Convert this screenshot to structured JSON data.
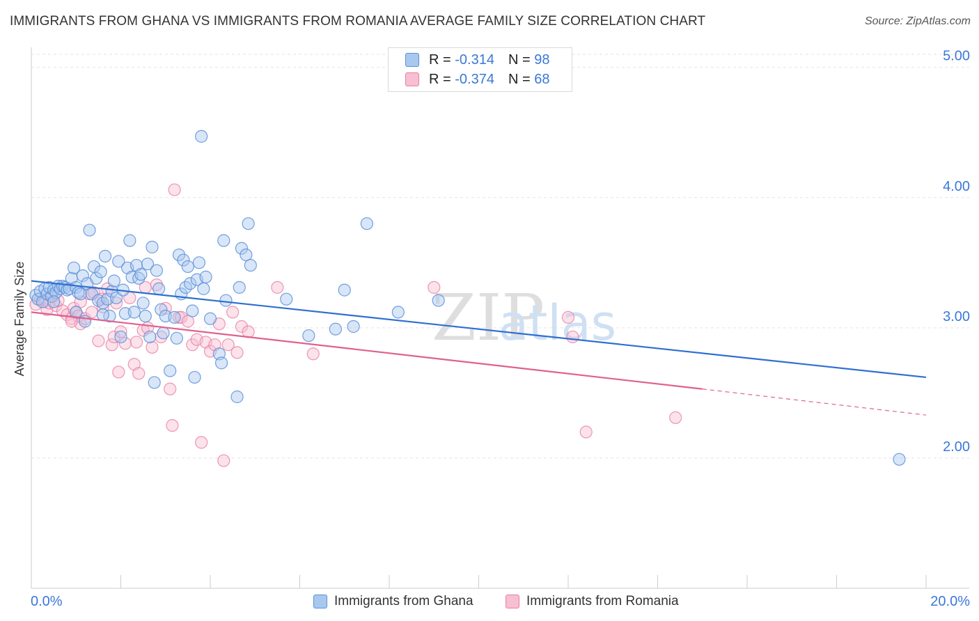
{
  "header": {
    "title": "IMMIGRANTS FROM GHANA VS IMMIGRANTS FROM ROMANIA AVERAGE FAMILY SIZE CORRELATION CHART",
    "source": "Source: ZipAtlas.com"
  },
  "watermark": {
    "zip": "ZIP",
    "atlas": "atlas"
  },
  "legend": {
    "series": [
      {
        "r_label": "R =",
        "r_value": "-0.314",
        "n_label": "N =",
        "n_value": "98"
      },
      {
        "r_label": "R =",
        "r_value": "-0.374",
        "n_label": "N =",
        "n_value": "68"
      }
    ]
  },
  "colors": {
    "ghana_fill": "#a8c8f0",
    "ghana_stroke": "#5b8fd8",
    "ghana_line": "#2f6fd0",
    "romania_fill": "#f7bfd2",
    "romania_stroke": "#e87ea3",
    "romania_line": "#e0608f",
    "tick_label": "#3a78d8",
    "grid": "#e3e3e3"
  },
  "chart_data": {
    "type": "scatter",
    "title": "IMMIGRANTS FROM GHANA VS IMMIGRANTS FROM ROMANIA AVERAGE FAMILY SIZE CORRELATION CHART",
    "xlabel": "",
    "ylabel": "Average Family Size",
    "xlim": [
      0,
      20
    ],
    "ylim": [
      1.0,
      5.1
    ],
    "x_tick_labels": {
      "min": "0.0%",
      "max": "20.0%"
    },
    "y_ticks": [
      {
        "value": 2.0,
        "label": "2.00"
      },
      {
        "value": 3.0,
        "label": "3.00"
      },
      {
        "value": 4.0,
        "label": "4.00"
      },
      {
        "value": 5.0,
        "label": "5.00"
      }
    ],
    "grid": true,
    "legend_position": "top-center",
    "series": [
      {
        "name": "Immigrants from Ghana",
        "r": -0.314,
        "n": 98,
        "trend": {
          "x0": 0,
          "y0": 3.36,
          "x1": 20,
          "y1": 2.62
        },
        "points": [
          [
            0.1,
            3.25
          ],
          [
            0.15,
            3.22
          ],
          [
            0.2,
            3.28
          ],
          [
            0.25,
            3.2
          ],
          [
            0.3,
            3.3
          ],
          [
            0.35,
            3.26
          ],
          [
            0.4,
            3.31
          ],
          [
            0.45,
            3.24
          ],
          [
            0.5,
            3.29
          ],
          [
            0.55,
            3.27
          ],
          [
            0.6,
            3.32
          ],
          [
            0.65,
            3.3
          ],
          [
            0.7,
            3.32
          ],
          [
            0.75,
            3.31
          ],
          [
            0.8,
            3.29
          ],
          [
            0.85,
            3.3
          ],
          [
            0.9,
            3.38
          ],
          [
            0.95,
            3.46
          ],
          [
            1.0,
            3.31
          ],
          [
            1.05,
            3.27
          ],
          [
            1.1,
            3.26
          ],
          [
            1.15,
            3.4
          ],
          [
            1.2,
            3.05
          ],
          [
            1.25,
            3.34
          ],
          [
            1.3,
            3.75
          ],
          [
            1.35,
            3.26
          ],
          [
            1.4,
            3.47
          ],
          [
            1.45,
            3.38
          ],
          [
            1.5,
            3.21
          ],
          [
            1.55,
            3.43
          ],
          [
            1.6,
            3.19
          ],
          [
            1.65,
            3.55
          ],
          [
            1.7,
            3.22
          ],
          [
            1.75,
            3.09
          ],
          [
            1.8,
            3.28
          ],
          [
            1.85,
            3.36
          ],
          [
            1.9,
            3.23
          ],
          [
            1.95,
            3.51
          ],
          [
            2.0,
            2.93
          ],
          [
            2.05,
            3.29
          ],
          [
            2.1,
            3.11
          ],
          [
            2.15,
            3.46
          ],
          [
            2.2,
            3.67
          ],
          [
            2.25,
            3.39
          ],
          [
            2.3,
            3.12
          ],
          [
            2.35,
            3.48
          ],
          [
            2.4,
            3.38
          ],
          [
            2.45,
            3.41
          ],
          [
            2.5,
            3.19
          ],
          [
            2.55,
            3.09
          ],
          [
            2.6,
            3.49
          ],
          [
            2.65,
            2.93
          ],
          [
            2.7,
            3.62
          ],
          [
            2.75,
            2.58
          ],
          [
            2.8,
            3.44
          ],
          [
            2.85,
            3.3
          ],
          [
            2.9,
            3.14
          ],
          [
            2.95,
            2.96
          ],
          [
            3.0,
            3.09
          ],
          [
            3.1,
            2.67
          ],
          [
            3.2,
            3.08
          ],
          [
            3.25,
            2.92
          ],
          [
            3.3,
            3.56
          ],
          [
            3.35,
            3.26
          ],
          [
            3.4,
            3.52
          ],
          [
            3.45,
            3.31
          ],
          [
            3.5,
            3.47
          ],
          [
            3.55,
            3.34
          ],
          [
            3.6,
            3.13
          ],
          [
            3.65,
            2.62
          ],
          [
            3.7,
            3.37
          ],
          [
            3.75,
            3.5
          ],
          [
            3.8,
            4.47
          ],
          [
            3.85,
            3.3
          ],
          [
            3.9,
            3.39
          ],
          [
            4.0,
            3.07
          ],
          [
            4.2,
            2.8
          ],
          [
            4.25,
            2.73
          ],
          [
            4.3,
            3.67
          ],
          [
            4.35,
            3.21
          ],
          [
            4.6,
            2.47
          ],
          [
            4.65,
            3.31
          ],
          [
            4.7,
            3.61
          ],
          [
            4.8,
            3.56
          ],
          [
            4.85,
            3.8
          ],
          [
            4.9,
            3.48
          ],
          [
            5.7,
            3.22
          ],
          [
            6.2,
            2.94
          ],
          [
            7.0,
            3.29
          ],
          [
            6.8,
            2.99
          ],
          [
            7.2,
            3.01
          ],
          [
            7.5,
            3.8
          ],
          [
            8.2,
            3.12
          ],
          [
            9.1,
            3.21
          ],
          [
            19.4,
            1.99
          ],
          [
            1.0,
            3.12
          ],
          [
            0.5,
            3.2
          ],
          [
            1.6,
            3.1
          ]
        ]
      },
      {
        "name": "Immigrants from Romania",
        "r": -0.374,
        "n": 68,
        "trend": {
          "x0": 0,
          "y0": 3.12,
          "x1": 15.0,
          "y1": 2.53
        },
        "trend_dashed": {
          "x0": 15.0,
          "y0": 2.53,
          "x1": 20,
          "y1": 2.33
        },
        "points": [
          [
            0.1,
            3.18
          ],
          [
            0.2,
            3.22
          ],
          [
            0.3,
            3.2
          ],
          [
            0.35,
            3.14
          ],
          [
            0.4,
            3.19
          ],
          [
            0.5,
            3.24
          ],
          [
            0.55,
            3.17
          ],
          [
            0.6,
            3.21
          ],
          [
            0.7,
            3.13
          ],
          [
            0.8,
            3.1
          ],
          [
            0.9,
            3.07
          ],
          [
            0.95,
            3.15
          ],
          [
            1.0,
            3.12
          ],
          [
            1.05,
            3.09
          ],
          [
            1.1,
            3.03
          ],
          [
            1.2,
            3.07
          ],
          [
            1.3,
            3.26
          ],
          [
            1.35,
            3.12
          ],
          [
            1.4,
            3.27
          ],
          [
            1.5,
            2.9
          ],
          [
            1.55,
            3.22
          ],
          [
            1.6,
            3.16
          ],
          [
            1.7,
            3.3
          ],
          [
            1.8,
            2.87
          ],
          [
            1.85,
            2.93
          ],
          [
            1.9,
            3.19
          ],
          [
            1.95,
            2.66
          ],
          [
            2.0,
            2.97
          ],
          [
            2.1,
            2.88
          ],
          [
            2.2,
            3.23
          ],
          [
            2.3,
            2.72
          ],
          [
            2.35,
            2.89
          ],
          [
            2.4,
            2.65
          ],
          [
            2.5,
            2.98
          ],
          [
            2.55,
            3.31
          ],
          [
            2.6,
            3.0
          ],
          [
            2.7,
            2.85
          ],
          [
            2.8,
            3.33
          ],
          [
            2.9,
            2.93
          ],
          [
            3.0,
            3.15
          ],
          [
            3.1,
            2.53
          ],
          [
            3.15,
            2.25
          ],
          [
            3.2,
            4.06
          ],
          [
            3.3,
            3.08
          ],
          [
            3.35,
            3.08
          ],
          [
            3.5,
            3.05
          ],
          [
            3.6,
            2.87
          ],
          [
            3.7,
            2.91
          ],
          [
            3.8,
            2.12
          ],
          [
            3.9,
            2.89
          ],
          [
            4.0,
            2.82
          ],
          [
            4.1,
            2.87
          ],
          [
            4.2,
            3.03
          ],
          [
            4.3,
            1.98
          ],
          [
            4.4,
            2.87
          ],
          [
            4.5,
            3.12
          ],
          [
            4.6,
            2.81
          ],
          [
            4.7,
            3.01
          ],
          [
            4.85,
            2.97
          ],
          [
            5.5,
            3.31
          ],
          [
            6.3,
            2.8
          ],
          [
            9.0,
            3.31
          ],
          [
            12.0,
            3.08
          ],
          [
            12.1,
            2.93
          ],
          [
            12.4,
            2.2
          ],
          [
            14.4,
            2.31
          ],
          [
            0.9,
            3.05
          ],
          [
            1.1,
            3.2
          ]
        ]
      }
    ]
  },
  "bottom_legend": {
    "ghana_label": "Immigrants from Ghana",
    "romania_label": "Immigrants from Romania"
  }
}
